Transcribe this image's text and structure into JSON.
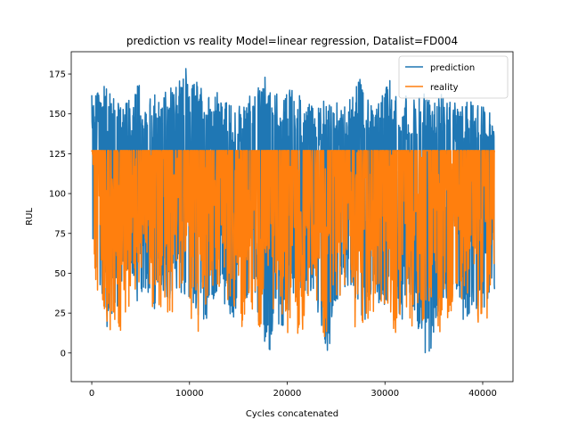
{
  "chart_data": {
    "type": "line",
    "title": "prediction vs reality Model=linear regression, Datalist=FD004",
    "xlabel": "Cycles concatenated",
    "ylabel": "RUL",
    "xlim": [
      -2100,
      43100
    ],
    "ylim": [
      -18,
      189
    ],
    "xticks": [
      0,
      10000,
      20000,
      30000,
      40000
    ],
    "xtick_labels": [
      "0",
      "10000",
      "20000",
      "30000",
      "40000"
    ],
    "yticks": [
      0,
      25,
      50,
      75,
      100,
      125,
      150,
      175
    ],
    "ytick_labels": [
      "0",
      "25",
      "50",
      "75",
      "100",
      "125",
      "150",
      "175"
    ],
    "grid": false,
    "legend_position": "upper right",
    "x_range": [
      0,
      41214
    ],
    "series": [
      {
        "name": "prediction",
        "color": "#1f77b4",
        "upper_envelope": [
          [
            0,
            163
          ],
          [
            800,
            166
          ],
          [
            1600,
            172
          ],
          [
            2400,
            159
          ],
          [
            3200,
            155
          ],
          [
            4000,
            160
          ],
          [
            4800,
            170
          ],
          [
            5600,
            158
          ],
          [
            6400,
            165
          ],
          [
            7200,
            162
          ],
          [
            8000,
            168
          ],
          [
            8800,
            171
          ],
          [
            9600,
            179
          ],
          [
            10400,
            172
          ],
          [
            11200,
            168
          ],
          [
            12000,
            163
          ],
          [
            12800,
            165
          ],
          [
            13600,
            160
          ],
          [
            14400,
            154
          ],
          [
            15200,
            158
          ],
          [
            16000,
            164
          ],
          [
            16800,
            166
          ],
          [
            17600,
            174
          ],
          [
            18400,
            170
          ],
          [
            19200,
            162
          ],
          [
            20000,
            168
          ],
          [
            20800,
            165
          ],
          [
            21600,
            160
          ],
          [
            22400,
            156
          ],
          [
            23200,
            155
          ],
          [
            24000,
            166
          ],
          [
            24800,
            160
          ],
          [
            25600,
            152
          ],
          [
            26400,
            160
          ],
          [
            27200,
            176
          ],
          [
            28000,
            164
          ],
          [
            28800,
            158
          ],
          [
            29600,
            159
          ],
          [
            30400,
            174
          ],
          [
            31200,
            160
          ],
          [
            32000,
            162
          ],
          [
            32800,
            158
          ],
          [
            33600,
            165
          ],
          [
            34400,
            162
          ],
          [
            35200,
            158
          ],
          [
            36000,
            164
          ],
          [
            36800,
            160
          ],
          [
            37600,
            153
          ],
          [
            38400,
            161
          ],
          [
            39200,
            159
          ],
          [
            40000,
            158
          ],
          [
            40800,
            155
          ],
          [
            41214,
            145
          ]
        ],
        "lower_envelope": [
          [
            0,
            58
          ],
          [
            800,
            45
          ],
          [
            1600,
            12
          ],
          [
            2400,
            20
          ],
          [
            3200,
            45
          ],
          [
            4000,
            55
          ],
          [
            4800,
            26
          ],
          [
            5600,
            38
          ],
          [
            6400,
            24
          ],
          [
            7200,
            40
          ],
          [
            8000,
            30
          ],
          [
            8800,
            38
          ],
          [
            9600,
            36
          ],
          [
            10400,
            22
          ],
          [
            11200,
            15
          ],
          [
            12000,
            20
          ],
          [
            12800,
            35
          ],
          [
            13600,
            30
          ],
          [
            14400,
            18
          ],
          [
            15200,
            40
          ],
          [
            16000,
            30
          ],
          [
            16800,
            25
          ],
          [
            17600,
            10
          ],
          [
            18000,
            -7
          ],
          [
            18800,
            20
          ],
          [
            19600,
            15
          ],
          [
            20400,
            28
          ],
          [
            21200,
            22
          ],
          [
            22000,
            35
          ],
          [
            22800,
            25
          ],
          [
            23600,
            10
          ],
          [
            24000,
            -9
          ],
          [
            24800,
            25
          ],
          [
            25600,
            38
          ],
          [
            26400,
            40
          ],
          [
            27200,
            30
          ],
          [
            28000,
            15
          ],
          [
            28800,
            30
          ],
          [
            29600,
            25
          ],
          [
            30400,
            12
          ],
          [
            31200,
            20
          ],
          [
            32000,
            18
          ],
          [
            32800,
            25
          ],
          [
            33600,
            10
          ],
          [
            34000,
            -3
          ],
          [
            34600,
            -3
          ],
          [
            35200,
            20
          ],
          [
            36000,
            30
          ],
          [
            36800,
            35
          ],
          [
            37600,
            22
          ],
          [
            38400,
            20
          ],
          [
            39200,
            28
          ],
          [
            40000,
            25
          ],
          [
            40800,
            30
          ],
          [
            41214,
            23
          ]
        ]
      },
      {
        "name": "reality",
        "color": "#ff7f0e",
        "cap": 127,
        "lower_envelope": [
          [
            0,
            125
          ],
          [
            400,
            22
          ],
          [
            800,
            38
          ],
          [
            1600,
            12
          ],
          [
            2000,
            7
          ],
          [
            2800,
            10
          ],
          [
            3600,
            25
          ],
          [
            4400,
            30
          ],
          [
            5000,
            6
          ],
          [
            5800,
            40
          ],
          [
            6600,
            10
          ],
          [
            7200,
            10
          ],
          [
            8000,
            25
          ],
          [
            8800,
            12
          ],
          [
            9600,
            40
          ],
          [
            10400,
            8
          ],
          [
            11200,
            8
          ],
          [
            12000,
            30
          ],
          [
            12800,
            22
          ],
          [
            13600,
            25
          ],
          [
            14400,
            30
          ],
          [
            15200,
            15
          ],
          [
            16000,
            20
          ],
          [
            16800,
            22
          ],
          [
            17600,
            6
          ],
          [
            18400,
            18
          ],
          [
            19200,
            25
          ],
          [
            20000,
            10
          ],
          [
            20800,
            8
          ],
          [
            21600,
            8
          ],
          [
            22400,
            30
          ],
          [
            23200,
            25
          ],
          [
            23900,
            7
          ],
          [
            24800,
            40
          ],
          [
            25600,
            22
          ],
          [
            26400,
            35
          ],
          [
            27200,
            6
          ],
          [
            28000,
            22
          ],
          [
            28800,
            20
          ],
          [
            29600,
            28
          ],
          [
            30400,
            12
          ],
          [
            31200,
            10
          ],
          [
            32000,
            22
          ],
          [
            32800,
            10
          ],
          [
            33600,
            18
          ],
          [
            34400,
            25
          ],
          [
            35200,
            8
          ],
          [
            36000,
            15
          ],
          [
            36800,
            20
          ],
          [
            37600,
            15
          ],
          [
            38400,
            35
          ],
          [
            39200,
            10
          ],
          [
            40000,
            20
          ],
          [
            40800,
            22
          ],
          [
            41214,
            26
          ]
        ]
      }
    ]
  }
}
